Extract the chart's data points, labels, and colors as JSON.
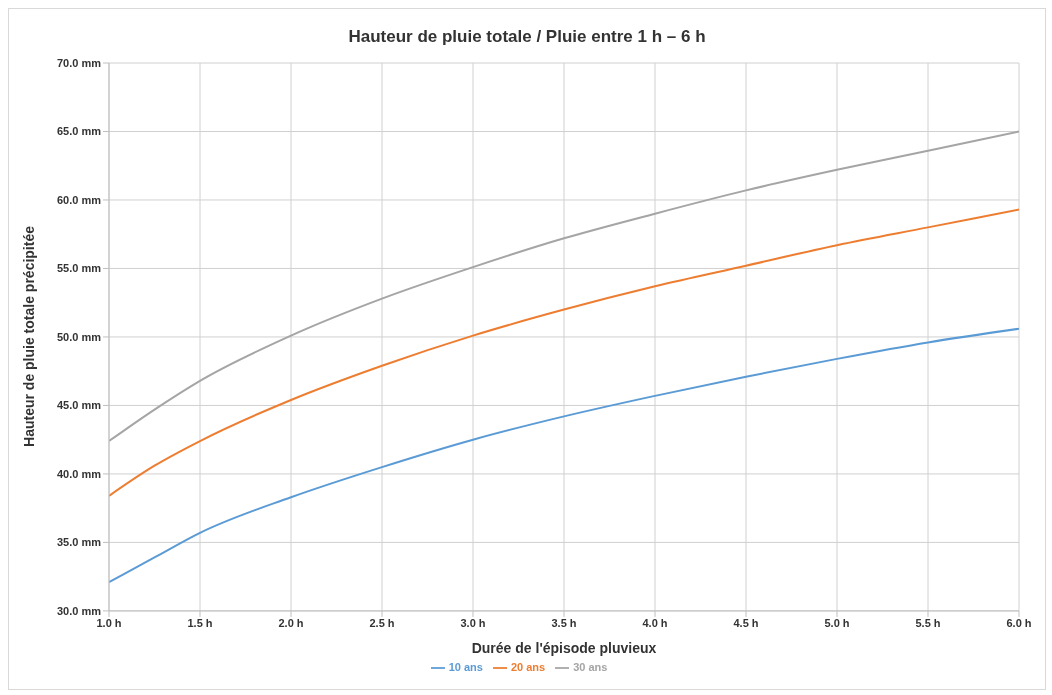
{
  "chart_data": {
    "type": "line",
    "title": "Hauteur de pluie totale / Pluie entre 1 h – 6 h",
    "xlabel": "Durée de l'épisode pluvieux",
    "ylabel": "Hauteur de pluie totale précipitée",
    "x": [
      1,
      1.25,
      1.5,
      2,
      2.5,
      3,
      3.5,
      4,
      4.5,
      5,
      5.5,
      6
    ],
    "series": [
      {
        "name": "10 ans",
        "color": "#5b9bd5",
        "values": [
          32.1,
          33.9,
          35.7,
          38.3,
          40.5,
          42.5,
          44.2,
          45.7,
          47.1,
          48.4,
          49.6,
          50.6
        ]
      },
      {
        "name": "20 ans",
        "color": "#ed7d31",
        "values": [
          38.4,
          40.6,
          42.4,
          45.4,
          47.9,
          50.1,
          52.0,
          53.7,
          55.2,
          56.7,
          58.0,
          59.3
        ]
      },
      {
        "name": "30 ans",
        "color": "#a5a5a5",
        "values": [
          42.4,
          44.7,
          46.8,
          50.1,
          52.8,
          55.1,
          57.2,
          59.0,
          60.7,
          62.2,
          63.6,
          65.0
        ]
      }
    ],
    "xlim": [
      1,
      6
    ],
    "xticks": [
      {
        "value": 1,
        "label": "1.0 h"
      },
      {
        "value": 1.5,
        "label": "1.5 h"
      },
      {
        "value": 2,
        "label": "2.0 h"
      },
      {
        "value": 2.5,
        "label": "2.5 h"
      },
      {
        "value": 3,
        "label": "3.0 h"
      },
      {
        "value": 3.5,
        "label": "3.5 h"
      },
      {
        "value": 4,
        "label": "4.0 h"
      },
      {
        "value": 4.5,
        "label": "4.5 h"
      },
      {
        "value": 5,
        "label": "5.0 h"
      },
      {
        "value": 5.5,
        "label": "5.5 h"
      },
      {
        "value": 6,
        "label": "6.0 h"
      }
    ],
    "ylim": [
      30,
      70
    ],
    "yticks": [
      {
        "value": 30,
        "label": "30.0 mm"
      },
      {
        "value": 35,
        "label": "35.0 mm"
      },
      {
        "value": 40,
        "label": "40.0 mm"
      },
      {
        "value": 45,
        "label": "45.0 mm"
      },
      {
        "value": 50,
        "label": "50.0 mm"
      },
      {
        "value": 55,
        "label": "55.0 mm"
      },
      {
        "value": 60,
        "label": "60.0 mm"
      },
      {
        "value": 65,
        "label": "65.0 mm"
      },
      {
        "value": 70,
        "label": "70.0 mm"
      }
    ],
    "grid": true,
    "legend": "bottom",
    "marker": "none",
    "line_style": "solid"
  }
}
